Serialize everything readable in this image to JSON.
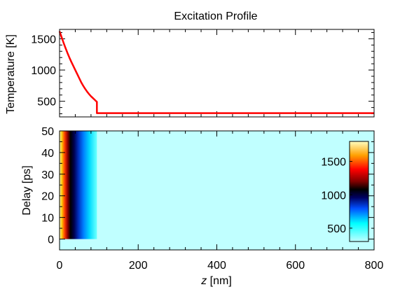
{
  "chart_data": [
    {
      "type": "line",
      "title": "Excitation Profile",
      "ylabel": "Temperature [K]",
      "xlabel": "",
      "xlim": [
        0,
        800
      ],
      "ylim": [
        250,
        1650
      ],
      "yticks": [
        500,
        1000,
        1500
      ],
      "color": "#ff0000",
      "series": [
        {
          "x": [
            0,
            5,
            10,
            15,
            20,
            25,
            30,
            35,
            40,
            45,
            50,
            55,
            60,
            65,
            70,
            75,
            80,
            85,
            90,
            95,
            95,
            100,
            200,
            400,
            600,
            800
          ],
          "y": [
            1620,
            1530,
            1440,
            1355,
            1275,
            1200,
            1130,
            1065,
            1000,
            935,
            870,
            805,
            750,
            700,
            655,
            615,
            580,
            550,
            520,
            490,
            310,
            310,
            310,
            310,
            310,
            310
          ]
        }
      ]
    },
    {
      "type": "heatmap",
      "xlabel_italic": "z",
      "xlabel_rest": " [nm]",
      "ylabel": "Delay [ps]",
      "xlim": [
        0,
        800
      ],
      "ylim": [
        -5,
        50
      ],
      "data_y_range": [
        0,
        50
      ],
      "xticks": [
        0,
        200,
        400,
        600,
        800
      ],
      "yticks": [
        0,
        10,
        20,
        30,
        40,
        50
      ],
      "background_value": 310,
      "profile_z": [
        0,
        95
      ],
      "colorbar": {
        "ticks": [
          500,
          1000,
          1500
        ],
        "range": [
          300,
          1800
        ]
      }
    }
  ]
}
